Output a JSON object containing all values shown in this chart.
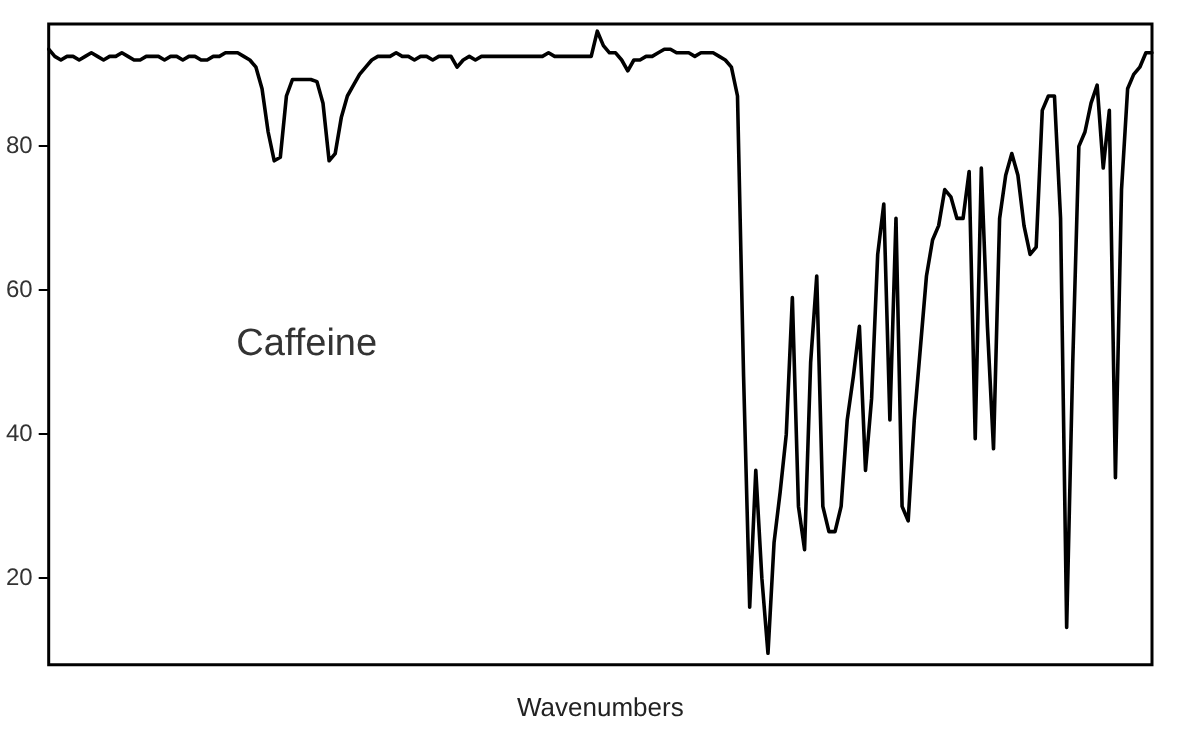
{
  "chart_data": {
    "type": "line",
    "xlabel": "Wavenumbers",
    "annotations": [
      "Caffeine"
    ],
    "ylim": [
      8,
      97
    ],
    "yticks": [
      20,
      40,
      60,
      80
    ],
    "grid": false,
    "legend": false,
    "tick_labels": "y",
    "marker": "none",
    "line_style": "solid",
    "categories": [
      null,
      null,
      null,
      null,
      null,
      null,
      null,
      null,
      null,
      null,
      null,
      null,
      null,
      null,
      null,
      null,
      null,
      null,
      null,
      null,
      null,
      null,
      null,
      null,
      null,
      null,
      null,
      null,
      null,
      null,
      null,
      null,
      null,
      null,
      null,
      null,
      null,
      null,
      null,
      null,
      null,
      null,
      null,
      null,
      null,
      null,
      null,
      null,
      null,
      null,
      null,
      null,
      null,
      null,
      null,
      null,
      null,
      null,
      null,
      null,
      null,
      null,
      null,
      null,
      null,
      null,
      null,
      null,
      null,
      null,
      null,
      null,
      null,
      null,
      null,
      null,
      null,
      null,
      null,
      null,
      null,
      null,
      null,
      null,
      null,
      null,
      null,
      null,
      null,
      null,
      null,
      null,
      null,
      null,
      null,
      null,
      null,
      null,
      null,
      null,
      null,
      null,
      null,
      null,
      null,
      null,
      null,
      null,
      null,
      null,
      null,
      null,
      null,
      null,
      null,
      null,
      null,
      null,
      null,
      null,
      null,
      null,
      null,
      null,
      null,
      null,
      null,
      null,
      null,
      null,
      null,
      null,
      null,
      null,
      null,
      null,
      null,
      null,
      null,
      null,
      null,
      null,
      null,
      null,
      null,
      null,
      null,
      null,
      null,
      null,
      null,
      null,
      null,
      null,
      null,
      null,
      null,
      null,
      null,
      null,
      null,
      null,
      null,
      null,
      null,
      null,
      null,
      null,
      null,
      null,
      null,
      null,
      null,
      null,
      null,
      null,
      null,
      null,
      null,
      null,
      null,
      null
    ],
    "series": [
      {
        "color": "#000000",
        "values": [
          93.5,
          92.5,
          92,
          92.5,
          92.5,
          92,
          92.5,
          93,
          92.5,
          92,
          92.5,
          92.5,
          93,
          92.5,
          92,
          92,
          92.5,
          92.5,
          92.5,
          92,
          92.5,
          92.5,
          92,
          92.5,
          92.5,
          92,
          92,
          92.5,
          92.5,
          93,
          93,
          93,
          92.5,
          92,
          91,
          88,
          82,
          78,
          78.5,
          87,
          89.3,
          89.3,
          89.3,
          89.3,
          89,
          86,
          78,
          79,
          84,
          87,
          88.5,
          90,
          91,
          92,
          92.5,
          92.5,
          92.5,
          93,
          92.5,
          92.5,
          92,
          92.5,
          92.5,
          92,
          92.5,
          92.5,
          92.5,
          91,
          92,
          92.5,
          92,
          92.5,
          92.5,
          92.5,
          92.5,
          92.5,
          92.5,
          92.5,
          92.5,
          92.5,
          92.5,
          92.5,
          93,
          92.5,
          92.5,
          92.5,
          92.5,
          92.5,
          92.5,
          92.5,
          96,
          94,
          93,
          93,
          92,
          90.5,
          92,
          92,
          92.5,
          92.5,
          93,
          93.5,
          93.5,
          93,
          93,
          93,
          92.5,
          93,
          93,
          93,
          92.5,
          92,
          91,
          87,
          48,
          16,
          35,
          20,
          9.6,
          25,
          32,
          40,
          59,
          30,
          24,
          50,
          62,
          30,
          26.5,
          26.5,
          30,
          42,
          48,
          55,
          35,
          45,
          65,
          72,
          42,
          70,
          30,
          28,
          42,
          52,
          62,
          67,
          69,
          74,
          73,
          70,
          70,
          76.5,
          39.4,
          77,
          55,
          38,
          70,
          76,
          79,
          76,
          69,
          65,
          66,
          85,
          87,
          87,
          70,
          13.2,
          50,
          80,
          82,
          86,
          88.5,
          77,
          85,
          34,
          74,
          88,
          90,
          91,
          93,
          93
        ]
      }
    ]
  }
}
